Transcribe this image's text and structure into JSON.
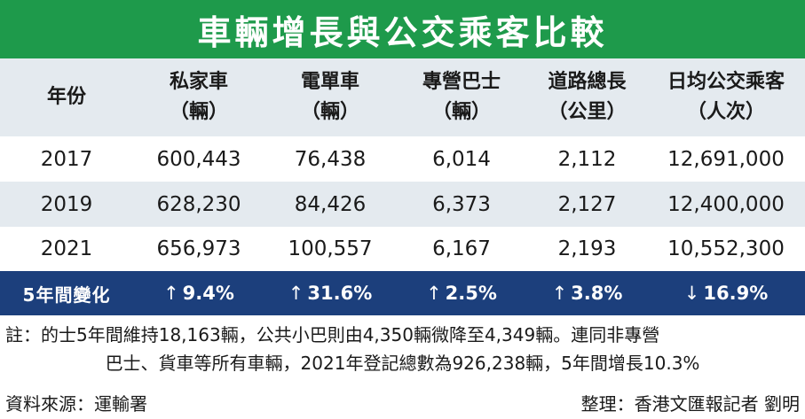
{
  "title": "車輛增長與公交乘客比較",
  "header": {
    "col0": {
      "line1": "年份"
    },
    "col1": {
      "line1": "私家車",
      "line2": "（輛）"
    },
    "col2": {
      "line1": "電單車",
      "line2": "（輛）"
    },
    "col3": {
      "line1": "專營巴士",
      "line2": "（輛）"
    },
    "col4": {
      "line1": "道路總長",
      "line2": "（公里）"
    },
    "col5": {
      "line1": "日均公交乘客",
      "line2": "（人次）"
    }
  },
  "rows": [
    {
      "year": "2017",
      "private_car": "600,443",
      "motorcycle": "76,438",
      "franchised_bus": "6,014",
      "road_length": "2,112",
      "daily_passengers": "12,691,000"
    },
    {
      "year": "2019",
      "private_car": "628,230",
      "motorcycle": "84,426",
      "franchised_bus": "6,373",
      "road_length": "2,127",
      "daily_passengers": "12,400,000"
    },
    {
      "year": "2021",
      "private_car": "656,973",
      "motorcycle": "100,557",
      "franchised_bus": "6,167",
      "road_length": "2,193",
      "daily_passengers": "10,552,300"
    }
  ],
  "change": {
    "label": "5年間變化",
    "up_arrow": "↑",
    "down_arrow": "↓",
    "private_car": "9.4%",
    "motorcycle": "31.6%",
    "franchised_bus": "2.5%",
    "road_length": "3.8%",
    "daily_passengers": "16.9%"
  },
  "note": {
    "line1": "註：的士5年間維持18,163輛，公共小巴則由4,350輛微降至4,349輛。連同非專營",
    "line2": "巴士、貨車等所有車輛，2021年登記總數為926,238輛，5年間增長10.3%"
  },
  "footer": {
    "source": "資料來源：運輸署",
    "credit": "整理：香港文匯報記者 劉明"
  },
  "colors": {
    "title_bg": "#1e9a4b",
    "header_bg": "#e4eaef",
    "change_bg": "#1c3f7c"
  }
}
